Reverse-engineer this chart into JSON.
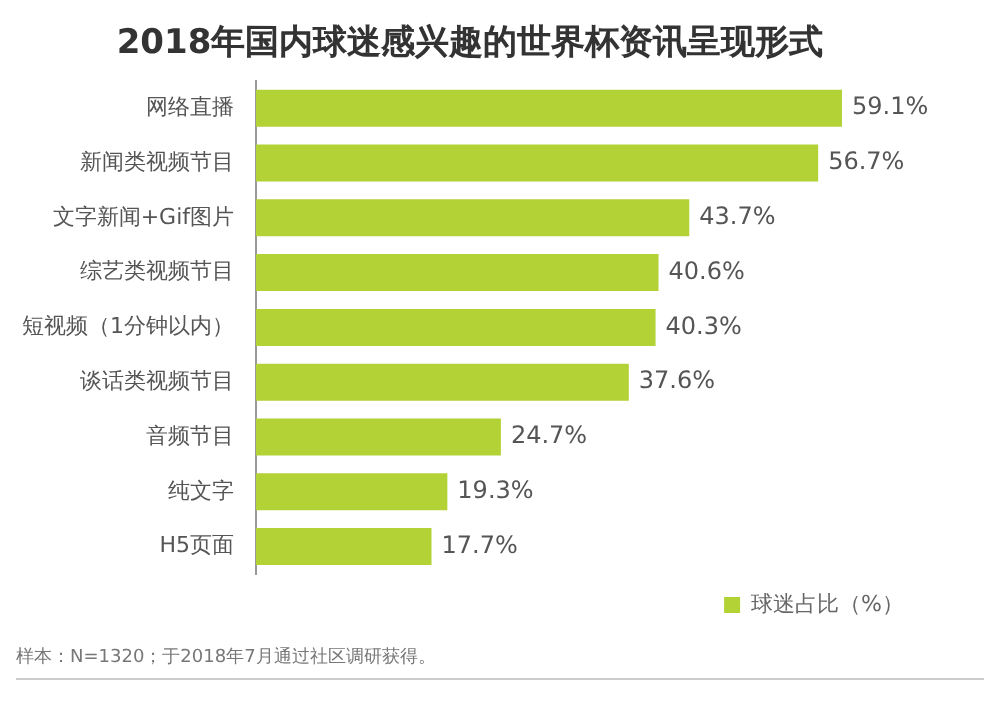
{
  "chart_data": {
    "type": "bar",
    "orientation": "horizontal",
    "title": "2018年国内球迷感兴趣的世界杯资讯呈现形式",
    "categories": [
      "网络直播",
      "新闻类视频节目",
      "文字新闻+Gif图片",
      "综艺类视频节目",
      "短视频（1分钟以内）",
      "谈话类视频节目",
      "音频节目",
      "纯文字",
      "H5页面"
    ],
    "series": [
      {
        "name": "球迷占比（%）",
        "color": "#b2d235",
        "values": [
          59.1,
          56.7,
          43.7,
          40.6,
          40.3,
          37.6,
          24.7,
          19.3,
          17.7
        ],
        "value_labels": [
          "59.1%",
          "56.7%",
          "43.7%",
          "40.6%",
          "40.3%",
          "37.6%",
          "24.7%",
          "19.3%",
          "17.7%"
        ]
      }
    ],
    "legend": "bottom",
    "annotations": [
      "样本：N=1320；于2018年7月通过社区调研获得。"
    ]
  }
}
